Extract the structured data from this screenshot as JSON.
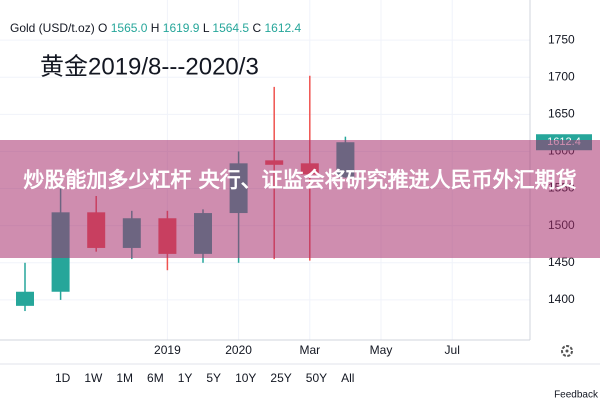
{
  "chart_data": {
    "type": "candlestick",
    "symbol": "Gold (USD/t.oz)",
    "legend_values": [
      {
        "key": "O",
        "value": 1565,
        "label": "1565.0"
      },
      {
        "key": "H",
        "value": 1619.9,
        "label": "1619.9"
      },
      {
        "key": "L",
        "value": 1564.5,
        "label": "1564.5"
      },
      {
        "key": "C",
        "value": 1612.4,
        "label": "1612.4"
      }
    ],
    "annotation": "黄金2019/8---2020/3",
    "overlay_text": "炒股能加多少杠杆 央行、证监会将研究推进人民币外汇期货",
    "categories": [
      null,
      null,
      null,
      null,
      "2019",
      null,
      "2020",
      null,
      "Mar",
      null,
      "May",
      null,
      "Jul"
    ],
    "open": [
      1392,
      1411,
      1518,
      1470,
      1510,
      1462,
      1517,
      1588,
      1584,
      1565,
      null,
      null,
      null
    ],
    "high": [
      1450,
      1550,
      1540,
      1520,
      1520,
      1522,
      1600,
      1687,
      1702,
      1619.9,
      null,
      null,
      null
    ],
    "low": [
      1385,
      1400,
      1465,
      1455,
      1440,
      1450,
      1450,
      1455,
      1453,
      1564.5,
      null,
      null,
      null
    ],
    "close": [
      1411,
      1518,
      1470,
      1510,
      1462,
      1517,
      1584,
      1582,
      1569,
      1612.4,
      null,
      null,
      null
    ],
    "up_color": "#26a69a",
    "down_color": "#ef5350",
    "last_price": 1612.4,
    "ylim": [
      1346,
      1804
    ],
    "yticks": [
      1400,
      1450,
      1500,
      1550,
      1600,
      1650,
      1700,
      1750
    ],
    "grid": true,
    "ranges": [
      "1D",
      "1W",
      "1M",
      "6M",
      "1Y",
      "5Y",
      "10Y",
      "25Y",
      "50Y",
      "All"
    ],
    "feedback": "Feedback"
  }
}
